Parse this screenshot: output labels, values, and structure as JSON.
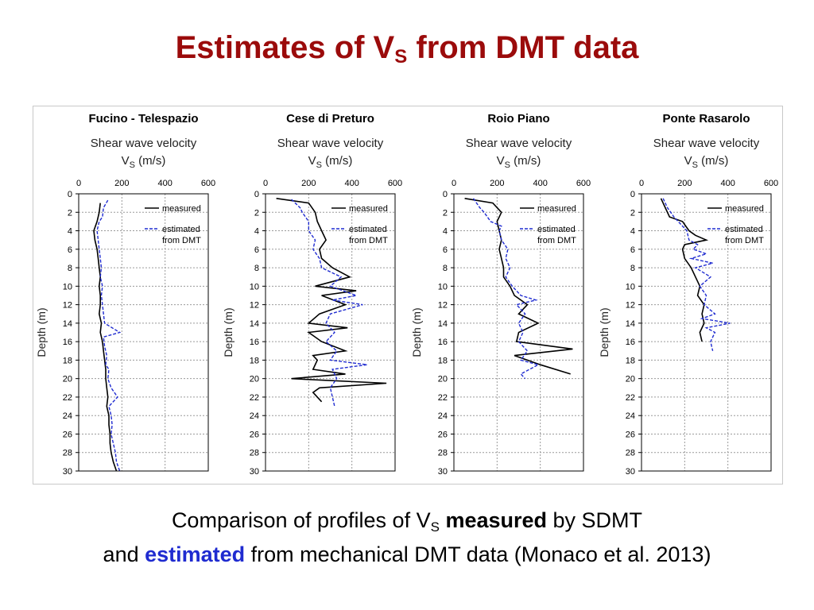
{
  "slide": {
    "title_pre": "Estimates of V",
    "title_sub": "S",
    "title_post": " from DMT data",
    "caption_l1_pre": "Comparison of profiles of V",
    "caption_l1_sub": "S",
    "caption_l1_bold": "measured",
    "caption_l1_post": " by SDMT",
    "caption_l2_pre": "and ",
    "caption_l2_bold": "estimated",
    "caption_l2_post": " from mechanical DMT data (Monaco et al. 2013)"
  },
  "colors": {
    "title": "#9b0b0b",
    "measured": "#000000",
    "estimated": "#1f2bd0",
    "grid": "#9a9a9a"
  },
  "chart_data": [
    {
      "type": "line",
      "title": "Fucino - Telespazio",
      "xlabel_main": "Shear wave velocity",
      "xlabel_unit_pre": "V",
      "xlabel_unit_sub": "S",
      "xlabel_unit_post": " (m/s)",
      "ylabel": "Depth (m)",
      "xlim": [
        0,
        600
      ],
      "ylim": [
        0,
        30
      ],
      "x_ticks": [
        "0",
        "200",
        "400",
        "600"
      ],
      "y_ticks": [
        "0",
        "2",
        "4",
        "6",
        "8",
        "10",
        "12",
        "14",
        "16",
        "18",
        "20",
        "22",
        "24",
        "26",
        "28",
        "30"
      ],
      "legend": {
        "position": "top-right",
        "measured": "measured",
        "estimated_l1": "estimated",
        "estimated_l2": "from DMT"
      },
      "series": [
        {
          "name": "measured",
          "points": [
            [
              100,
              1
            ],
            [
              95,
              2
            ],
            [
              85,
              3
            ],
            [
              70,
              4
            ],
            [
              75,
              5
            ],
            [
              85,
              6
            ],
            [
              90,
              7
            ],
            [
              95,
              8
            ],
            [
              100,
              9
            ],
            [
              95,
              10
            ],
            [
              100,
              11
            ],
            [
              100,
              12
            ],
            [
              95,
              13
            ],
            [
              105,
              14
            ],
            [
              100,
              15
            ],
            [
              110,
              16
            ],
            [
              115,
              17
            ],
            [
              120,
              18
            ],
            [
              125,
              19
            ],
            [
              125,
              20
            ],
            [
              130,
              21
            ],
            [
              135,
              22
            ],
            [
              130,
              23
            ],
            [
              140,
              24
            ],
            [
              140,
              25
            ],
            [
              145,
              26
            ],
            [
              145,
              27
            ],
            [
              150,
              28
            ],
            [
              160,
              29
            ],
            [
              175,
              30
            ]
          ]
        },
        {
          "name": "estimated",
          "points": [
            [
              135,
              0.7
            ],
            [
              115,
              1.5
            ],
            [
              110,
              2.5
            ],
            [
              95,
              3
            ],
            [
              85,
              4
            ],
            [
              90,
              5
            ],
            [
              95,
              6
            ],
            [
              100,
              7
            ],
            [
              105,
              8
            ],
            [
              100,
              9
            ],
            [
              110,
              10
            ],
            [
              105,
              11
            ],
            [
              110,
              12
            ],
            [
              115,
              13
            ],
            [
              120,
              14
            ],
            [
              190,
              15
            ],
            [
              115,
              15.5
            ],
            [
              120,
              16.5
            ],
            [
              130,
              17.5
            ],
            [
              125,
              18.5
            ],
            [
              140,
              19
            ],
            [
              135,
              20
            ],
            [
              150,
              21
            ],
            [
              180,
              22
            ],
            [
              140,
              23
            ],
            [
              150,
              24
            ],
            [
              155,
              25
            ],
            [
              150,
              26
            ],
            [
              160,
              27
            ],
            [
              170,
              28
            ],
            [
              175,
              29
            ],
            [
              190,
              30
            ]
          ]
        }
      ]
    },
    {
      "type": "line",
      "title": "Cese di Preturo",
      "xlabel_main": "Shear wave velocity",
      "xlabel_unit_pre": "V",
      "xlabel_unit_sub": "S",
      "xlabel_unit_post": " (m/s)",
      "ylabel": "Depth (m)",
      "xlim": [
        0,
        600
      ],
      "ylim": [
        0,
        30
      ],
      "x_ticks": [
        "0",
        "200",
        "400",
        "600"
      ],
      "y_ticks": [
        "0",
        "2",
        "4",
        "6",
        "8",
        "10",
        "12",
        "14",
        "16",
        "18",
        "20",
        "22",
        "24",
        "26",
        "28",
        "30"
      ],
      "legend": {
        "position": "top-right",
        "measured": "measured",
        "estimated_l1": "estimated",
        "estimated_l2": "from DMT"
      },
      "series": [
        {
          "name": "measured",
          "points": [
            [
              50,
              0.5
            ],
            [
              200,
              1
            ],
            [
              230,
              2
            ],
            [
              240,
              3
            ],
            [
              260,
              4
            ],
            [
              280,
              5
            ],
            [
              250,
              6
            ],
            [
              260,
              7
            ],
            [
              310,
              8
            ],
            [
              390,
              9
            ],
            [
              230,
              10
            ],
            [
              420,
              10.5
            ],
            [
              260,
              11
            ],
            [
              370,
              12
            ],
            [
              250,
              13
            ],
            [
              200,
              14
            ],
            [
              380,
              14.5
            ],
            [
              200,
              15
            ],
            [
              260,
              16
            ],
            [
              370,
              17
            ],
            [
              220,
              17.5
            ],
            [
              240,
              18
            ],
            [
              220,
              19
            ],
            [
              370,
              19.5
            ],
            [
              120,
              20
            ],
            [
              560,
              20.5
            ],
            [
              250,
              21
            ],
            [
              220,
              21.5
            ],
            [
              260,
              22.5
            ]
          ]
        },
        {
          "name": "estimated",
          "points": [
            [
              120,
              0.6
            ],
            [
              160,
              1.5
            ],
            [
              170,
              2
            ],
            [
              200,
              3
            ],
            [
              200,
              4
            ],
            [
              230,
              5
            ],
            [
              220,
              6
            ],
            [
              250,
              7
            ],
            [
              260,
              8
            ],
            [
              350,
              9
            ],
            [
              300,
              10
            ],
            [
              420,
              11
            ],
            [
              310,
              11.5
            ],
            [
              450,
              12
            ],
            [
              300,
              13
            ],
            [
              280,
              14
            ],
            [
              320,
              15
            ],
            [
              280,
              16
            ],
            [
              330,
              17
            ],
            [
              300,
              18
            ],
            [
              470,
              18.5
            ],
            [
              310,
              19
            ],
            [
              330,
              20
            ],
            [
              300,
              21
            ],
            [
              310,
              22
            ],
            [
              320,
              23
            ]
          ]
        }
      ]
    },
    {
      "type": "line",
      "title": "Roio Piano",
      "xlabel_main": "Shear wave velocity",
      "xlabel_unit_pre": "V",
      "xlabel_unit_sub": "S",
      "xlabel_unit_post": " (m/s)",
      "ylabel": "Depth (m)",
      "xlim": [
        0,
        600
      ],
      "ylim": [
        0,
        30
      ],
      "x_ticks": [
        "0",
        "200",
        "400",
        "600"
      ],
      "y_ticks": [
        "0",
        "2",
        "4",
        "6",
        "8",
        "10",
        "12",
        "14",
        "16",
        "18",
        "20",
        "22",
        "24",
        "26",
        "28",
        "30"
      ],
      "legend": {
        "position": "top-right",
        "measured": "measured",
        "estimated_l1": "estimated",
        "estimated_l2": "from DMT"
      },
      "series": [
        {
          "name": "measured",
          "points": [
            [
              50,
              0.5
            ],
            [
              180,
              1
            ],
            [
              220,
              2
            ],
            [
              200,
              3
            ],
            [
              210,
              4
            ],
            [
              220,
              5
            ],
            [
              210,
              6
            ],
            [
              220,
              7
            ],
            [
              230,
              8
            ],
            [
              230,
              9
            ],
            [
              260,
              10
            ],
            [
              280,
              11
            ],
            [
              340,
              12
            ],
            [
              300,
              13
            ],
            [
              390,
              14
            ],
            [
              300,
              15
            ],
            [
              290,
              16
            ],
            [
              550,
              16.8
            ],
            [
              280,
              17.5
            ],
            [
              340,
              18
            ],
            [
              400,
              18.5
            ],
            [
              540,
              19.5
            ]
          ]
        },
        {
          "name": "estimated",
          "points": [
            [
              90,
              0.5
            ],
            [
              120,
              1.5
            ],
            [
              140,
              2
            ],
            [
              170,
              3
            ],
            [
              220,
              3.5
            ],
            [
              210,
              4
            ],
            [
              220,
              5
            ],
            [
              250,
              6
            ],
            [
              240,
              7
            ],
            [
              260,
              8
            ],
            [
              240,
              9
            ],
            [
              270,
              10
            ],
            [
              310,
              11
            ],
            [
              380,
              11.5
            ],
            [
              290,
              12
            ],
            [
              330,
              13
            ],
            [
              300,
              14
            ],
            [
              320,
              15
            ],
            [
              300,
              16
            ],
            [
              340,
              17
            ],
            [
              310,
              18
            ],
            [
              390,
              18.5
            ],
            [
              310,
              19.5
            ],
            [
              330,
              20
            ]
          ]
        }
      ]
    },
    {
      "type": "line",
      "title": "Ponte Rasarolo",
      "xlabel_main": "Shear wave velocity",
      "xlabel_unit_pre": "V",
      "xlabel_unit_sub": "S",
      "xlabel_unit_post": " (m/s)",
      "ylabel": "Depth (m)",
      "xlim": [
        0,
        600
      ],
      "ylim": [
        0,
        30
      ],
      "x_ticks": [
        "0",
        "200",
        "400",
        "600"
      ],
      "y_ticks": [
        "0",
        "2",
        "4",
        "6",
        "8",
        "10",
        "12",
        "14",
        "16",
        "18",
        "20",
        "22",
        "24",
        "26",
        "28",
        "30"
      ],
      "legend": {
        "position": "top-right",
        "measured": "measured",
        "estimated_l1": "estimated",
        "estimated_l2": "from DMT"
      },
      "series": [
        {
          "name": "measured",
          "points": [
            [
              90,
              0.5
            ],
            [
              110,
              1.5
            ],
            [
              130,
              2.5
            ],
            [
              190,
              3
            ],
            [
              220,
              4
            ],
            [
              250,
              4.5
            ],
            [
              300,
              5
            ],
            [
              200,
              5.5
            ],
            [
              190,
              6
            ],
            [
              200,
              7
            ],
            [
              230,
              8
            ],
            [
              250,
              9
            ],
            [
              270,
              10
            ],
            [
              260,
              11
            ],
            [
              290,
              12
            ],
            [
              280,
              13
            ],
            [
              290,
              14
            ],
            [
              270,
              15
            ],
            [
              280,
              16
            ]
          ]
        },
        {
          "name": "estimated",
          "points": [
            [
              100,
              0.5
            ],
            [
              120,
              1.5
            ],
            [
              150,
              2.5
            ],
            [
              170,
              3
            ],
            [
              210,
              4
            ],
            [
              220,
              5
            ],
            [
              260,
              5.5
            ],
            [
              240,
              6
            ],
            [
              300,
              6.5
            ],
            [
              230,
              7
            ],
            [
              330,
              7.5
            ],
            [
              250,
              8
            ],
            [
              320,
              9
            ],
            [
              270,
              10
            ],
            [
              300,
              11
            ],
            [
              290,
              12
            ],
            [
              340,
              13
            ],
            [
              280,
              13.5
            ],
            [
              410,
              14
            ],
            [
              300,
              14.5
            ],
            [
              340,
              15
            ],
            [
              320,
              16
            ],
            [
              330,
              17
            ]
          ]
        }
      ]
    }
  ]
}
